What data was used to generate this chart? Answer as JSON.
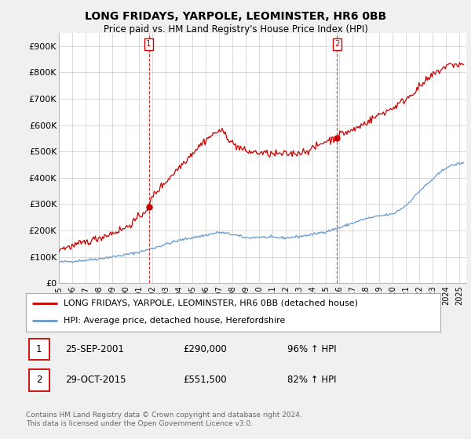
{
  "title": "LONG FRIDAYS, YARPOLE, LEOMINSTER, HR6 0BB",
  "subtitle": "Price paid vs. HM Land Registry's House Price Index (HPI)",
  "legend_label_red": "LONG FRIDAYS, YARPOLE, LEOMINSTER, HR6 0BB (detached house)",
  "legend_label_blue": "HPI: Average price, detached house, Herefordshire",
  "marker1_date": "25-SEP-2001",
  "marker1_price": "£290,000",
  "marker1_hpi": "96% ↑ HPI",
  "marker2_date": "29-OCT-2015",
  "marker2_price": "£551,500",
  "marker2_hpi": "82% ↑ HPI",
  "footer": "Contains HM Land Registry data © Crown copyright and database right 2024.\nThis data is licensed under the Open Government Licence v3.0.",
  "ylim": [
    0,
    950000
  ],
  "yticks": [
    0,
    100000,
    200000,
    300000,
    400000,
    500000,
    600000,
    700000,
    800000,
    900000
  ],
  "ytick_labels": [
    "£0",
    "£100K",
    "£200K",
    "£300K",
    "£400K",
    "£500K",
    "£600K",
    "£700K",
    "£800K",
    "£900K"
  ],
  "red_color": "#cc0000",
  "blue_color": "#6699cc",
  "bg_color": "#f0f0f0",
  "plot_bg_color": "#ffffff",
  "grid_color": "#cccccc",
  "marker1_x": 2001.73,
  "marker2_x": 2015.83,
  "marker1_y": 290000,
  "marker2_y": 551500,
  "xlim_left": 1995,
  "xlim_right": 2025.5
}
